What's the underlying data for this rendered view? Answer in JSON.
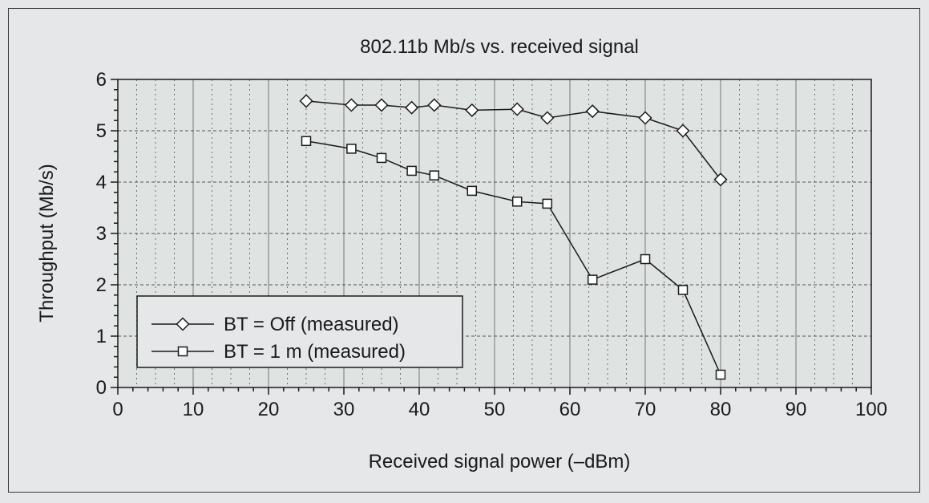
{
  "chart_data": {
    "type": "line",
    "title": "802.11b Mb/s vs. received signal",
    "xlabel": "Received signal power (–dBm)",
    "ylabel": "Throughput (Mb/s)",
    "xlim": [
      0,
      100
    ],
    "ylim": [
      0,
      6
    ],
    "xticks": [
      "0",
      "10",
      "20",
      "30",
      "40",
      "50",
      "60",
      "70",
      "80",
      "90",
      "100"
    ],
    "yticks": [
      "0",
      "1",
      "2",
      "3",
      "4",
      "5",
      "6"
    ],
    "grid": true,
    "legend_position": "bottom-left",
    "series": [
      {
        "name": "BT = Off (measured)",
        "marker": "diamond",
        "x": [
          25,
          31,
          35,
          39,
          42,
          47,
          53,
          57,
          63,
          70,
          75,
          80
        ],
        "y": [
          5.58,
          5.5,
          5.5,
          5.45,
          5.5,
          5.4,
          5.42,
          5.25,
          5.38,
          5.25,
          5.0,
          4.05
        ]
      },
      {
        "name": "BT = 1 m (measured)",
        "marker": "square",
        "x": [
          25,
          31,
          35,
          39,
          42,
          47,
          53,
          57,
          63,
          70,
          75,
          80
        ],
        "y": [
          4.8,
          4.65,
          4.47,
          4.22,
          4.13,
          3.83,
          3.62,
          3.58,
          2.1,
          2.5,
          1.9,
          0.25
        ]
      }
    ],
    "colors": {
      "plot_background": "#dfe4e3",
      "figure_background": "#e6e7e8",
      "line": "#1a1a1a",
      "grid": "#808080",
      "marker_fill": "#ffffff"
    }
  }
}
